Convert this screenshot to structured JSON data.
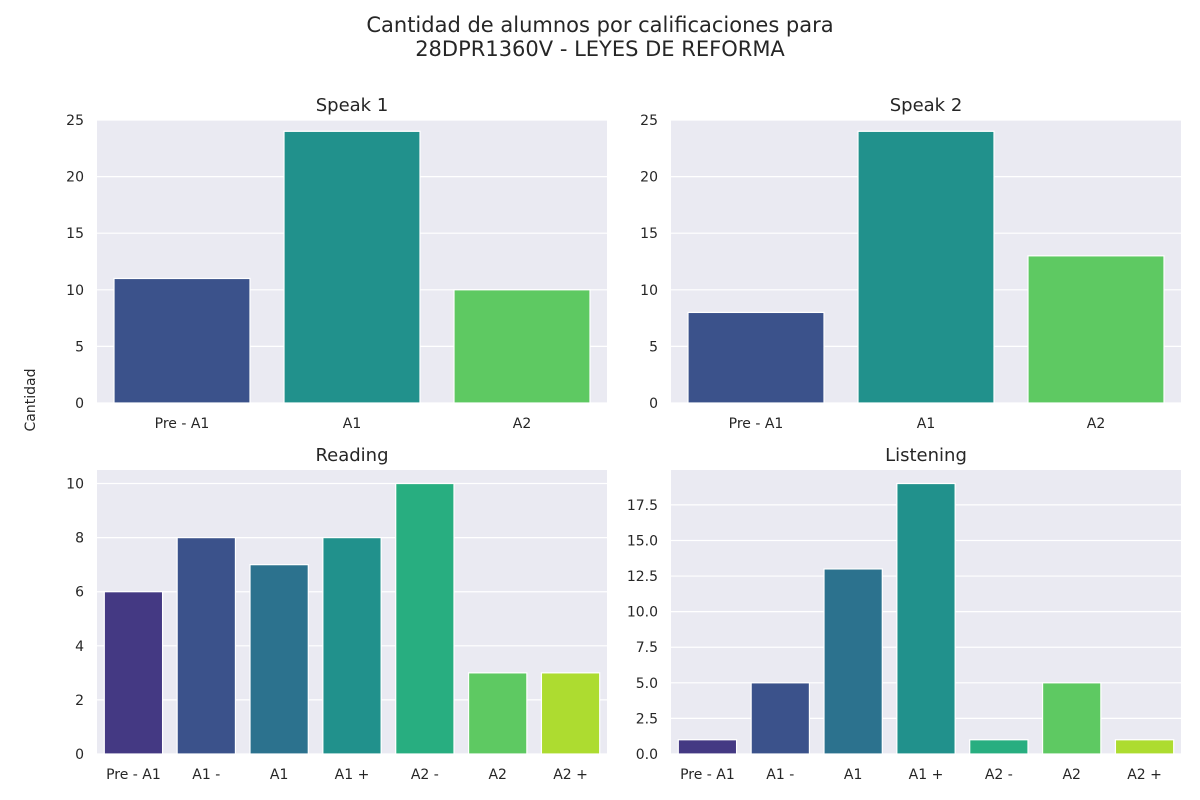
{
  "figure": {
    "title_line1": "Cantidad de alumnos por calificaciones para",
    "title_line2": "28DPR1360V - LEYES DE REFORMA",
    "ylabel": "Cantidad",
    "background": "#eaeaf2",
    "grid_color": "#ffffff"
  },
  "chart_data": [
    {
      "type": "bar",
      "title": "Speak 1",
      "categories": [
        "Pre - A1",
        "A1",
        "A2"
      ],
      "values": [
        11,
        24,
        10
      ],
      "colors": [
        "#3b528b",
        "#21918c",
        "#5ec962"
      ],
      "ylim": [
        0,
        25
      ],
      "yticks": [
        0,
        5,
        10,
        15,
        20,
        25
      ],
      "ytick_labels": [
        "0",
        "5",
        "10",
        "15",
        "20",
        "25"
      ],
      "grid": true
    },
    {
      "type": "bar",
      "title": "Speak 2",
      "categories": [
        "Pre - A1",
        "A1",
        "A2"
      ],
      "values": [
        8,
        24,
        13
      ],
      "colors": [
        "#3b528b",
        "#21918c",
        "#5ec962"
      ],
      "ylim": [
        0,
        25
      ],
      "yticks": [
        0,
        5,
        10,
        15,
        20,
        25
      ],
      "ytick_labels": [
        "0",
        "5",
        "10",
        "15",
        "20",
        "25"
      ],
      "grid": true
    },
    {
      "type": "bar",
      "title": "Reading",
      "categories": [
        "Pre - A1",
        "A1 -",
        "A1",
        "A1 +",
        "A2 -",
        "A2",
        "A2 +"
      ],
      "values": [
        6,
        8,
        7,
        8,
        10,
        3,
        3
      ],
      "colors": [
        "#443983",
        "#3b528b",
        "#2c728e",
        "#21918c",
        "#28ae80",
        "#5ec962",
        "#addc30"
      ],
      "ylim": [
        0,
        10.5
      ],
      "yticks": [
        0,
        2,
        4,
        6,
        8,
        10
      ],
      "ytick_labels": [
        "0",
        "2",
        "4",
        "6",
        "8",
        "10"
      ],
      "grid": true
    },
    {
      "type": "bar",
      "title": "Listening",
      "categories": [
        "Pre - A1",
        "A1 -",
        "A1",
        "A1 +",
        "A2 -",
        "A2",
        "A2 +"
      ],
      "values": [
        1,
        5,
        13,
        19,
        1,
        5,
        1
      ],
      "colors": [
        "#443983",
        "#3b528b",
        "#2c728e",
        "#21918c",
        "#28ae80",
        "#5ec962",
        "#addc30"
      ],
      "ylim": [
        0,
        19.95
      ],
      "yticks": [
        0,
        2.5,
        5,
        7.5,
        10,
        12.5,
        15,
        17.5
      ],
      "ytick_labels": [
        "0.0",
        "2.5",
        "5.0",
        "7.5",
        "10.0",
        "12.5",
        "15.0",
        "17.5"
      ],
      "grid": true
    }
  ]
}
